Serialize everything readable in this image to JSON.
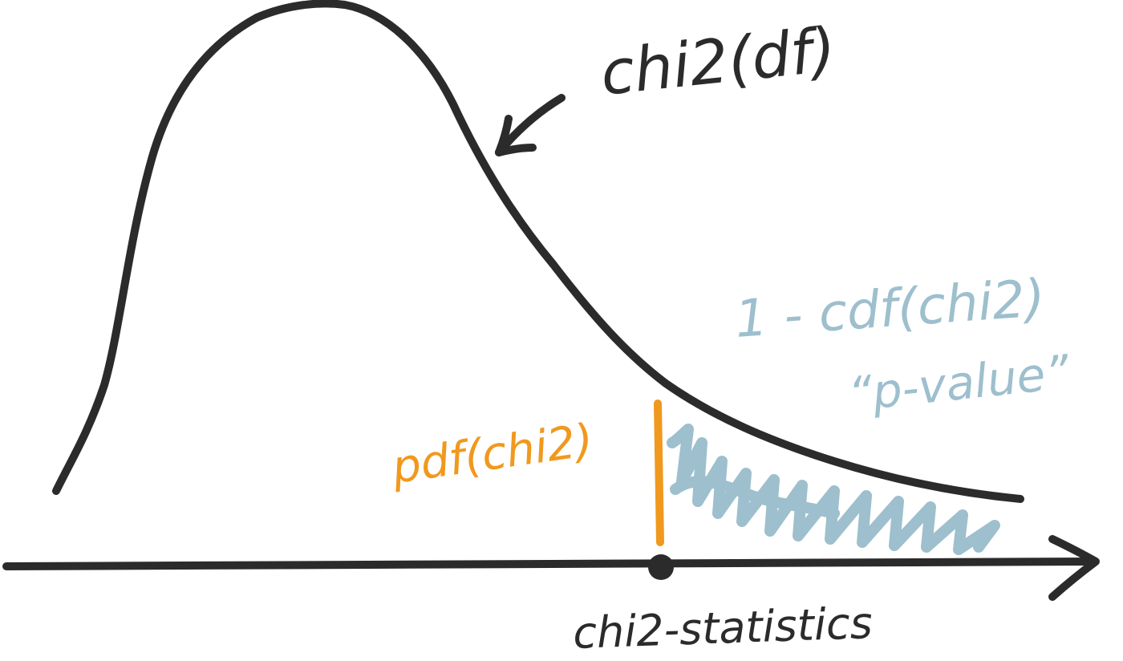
{
  "colors": {
    "ink": "#2b2b2b",
    "pdf_marker": "#f0991e",
    "p_value": "#9ebfcd",
    "background": "#ffffff"
  },
  "labels": {
    "curve": "chi2(df)",
    "pdf": "pdf(chi2)",
    "tail_formula": "1 - cdf(chi2)",
    "tail_name": "“p-value”",
    "x_axis": "chi2-statistics"
  }
}
